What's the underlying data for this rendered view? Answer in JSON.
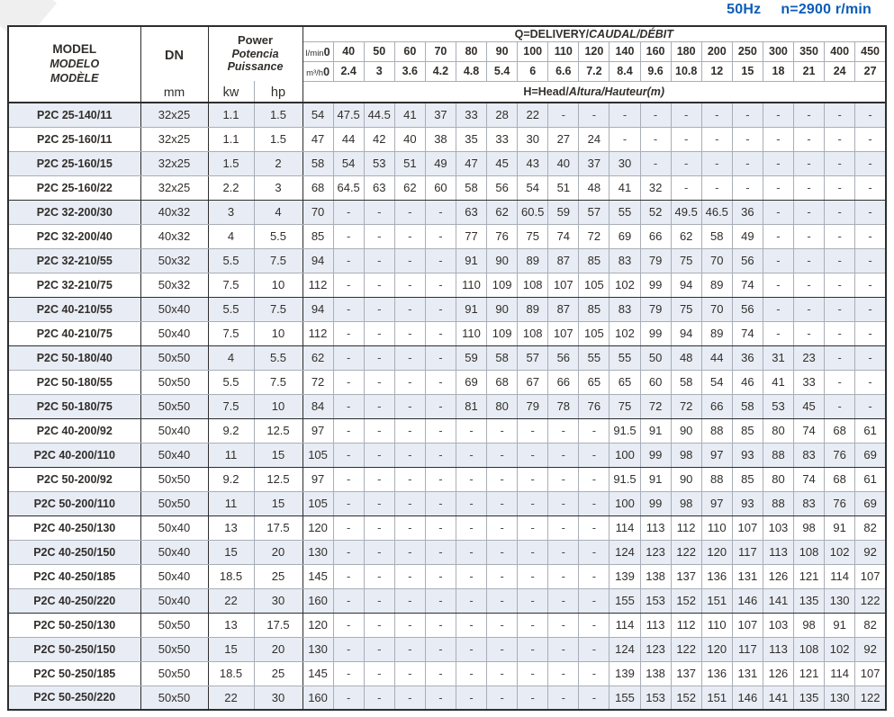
{
  "page": {
    "frequency": "50Hz",
    "speed": "n=2900 r/min"
  },
  "colors": {
    "accent_blue": "#0b5cb8",
    "row_shade": "#e8ecf4",
    "border_dark": "#2d2d2d",
    "border_light": "#a9aeb6"
  },
  "table": {
    "model_header": [
      "MODEL",
      "MODELO",
      "MODÈLE"
    ],
    "dn_label": "DN",
    "dn_unit": "mm",
    "power_header": [
      "Power",
      "Potencia",
      "Puissance"
    ],
    "power_units": [
      "kw",
      "hp"
    ],
    "q_title": {
      "bold": "Q=DELIVERY/",
      "italic": "CAUDAL/DÉBIT"
    },
    "h_title": {
      "bold": "H=Head/",
      "italic": "Altura/Hauteur(m)"
    },
    "flow_row_labels": {
      "lmin": "l/min",
      "m3h": "m³/h"
    },
    "lmin_values": [
      "0",
      "40",
      "50",
      "60",
      "70",
      "80",
      "90",
      "100",
      "110",
      "120",
      "140",
      "160",
      "180",
      "200",
      "250",
      "300",
      "350",
      "400",
      "450"
    ],
    "m3h_values": [
      "0",
      "2.4",
      "3",
      "3.6",
      "4.2",
      "4.8",
      "5.4",
      "6",
      "6.6",
      "7.2",
      "8.4",
      "9.6",
      "10.8",
      "12",
      "15",
      "18",
      "21",
      "24",
      "27"
    ],
    "rows": [
      {
        "model": "P2C 25-140/11",
        "dn": "32x25",
        "kw": "1.1",
        "hp": "1.5",
        "group_end": false,
        "heads": [
          "54",
          "47.5",
          "44.5",
          "41",
          "37",
          "33",
          "28",
          "22",
          "-",
          "-",
          "-",
          "-",
          "-",
          "-",
          "-",
          "-",
          "-",
          "-",
          "-"
        ]
      },
      {
        "model": "P2C 25-160/11",
        "dn": "32x25",
        "kw": "1.1",
        "hp": "1.5",
        "group_end": false,
        "heads": [
          "47",
          "44",
          "42",
          "40",
          "38",
          "35",
          "33",
          "30",
          "27",
          "24",
          "-",
          "-",
          "-",
          "-",
          "-",
          "-",
          "-",
          "-",
          "-"
        ]
      },
      {
        "model": "P2C 25-160/15",
        "dn": "32x25",
        "kw": "1.5",
        "hp": "2",
        "group_end": false,
        "heads": [
          "58",
          "54",
          "53",
          "51",
          "49",
          "47",
          "45",
          "43",
          "40",
          "37",
          "30",
          "-",
          "-",
          "-",
          "-",
          "-",
          "-",
          "-",
          "-"
        ]
      },
      {
        "model": "P2C 25-160/22",
        "dn": "32x25",
        "kw": "2.2",
        "hp": "3",
        "group_end": true,
        "heads": [
          "68",
          "64.5",
          "63",
          "62",
          "60",
          "58",
          "56",
          "54",
          "51",
          "48",
          "41",
          "32",
          "-",
          "-",
          "-",
          "-",
          "-",
          "-",
          "-"
        ]
      },
      {
        "model": "P2C 32-200/30",
        "dn": "40x32",
        "kw": "3",
        "hp": "4",
        "group_end": false,
        "heads": [
          "70",
          "-",
          "-",
          "-",
          "-",
          "63",
          "62",
          "60.5",
          "59",
          "57",
          "55",
          "52",
          "49.5",
          "46.5",
          "36",
          "-",
          "-",
          "-",
          "-"
        ]
      },
      {
        "model": "P2C 32-200/40",
        "dn": "40x32",
        "kw": "4",
        "hp": "5.5",
        "group_end": false,
        "heads": [
          "85",
          "-",
          "-",
          "-",
          "-",
          "77",
          "76",
          "75",
          "74",
          "72",
          "69",
          "66",
          "62",
          "58",
          "49",
          "-",
          "-",
          "-",
          "-"
        ]
      },
      {
        "model": "P2C 32-210/55",
        "dn": "50x32",
        "kw": "5.5",
        "hp": "7.5",
        "group_end": false,
        "heads": [
          "94",
          "-",
          "-",
          "-",
          "-",
          "91",
          "90",
          "89",
          "87",
          "85",
          "83",
          "79",
          "75",
          "70",
          "56",
          "-",
          "-",
          "-",
          "-"
        ]
      },
      {
        "model": "P2C 32-210/75",
        "dn": "50x32",
        "kw": "7.5",
        "hp": "10",
        "group_end": true,
        "heads": [
          "112",
          "-",
          "-",
          "-",
          "-",
          "110",
          "109",
          "108",
          "107",
          "105",
          "102",
          "99",
          "94",
          "89",
          "74",
          "-",
          "-",
          "-",
          "-"
        ]
      },
      {
        "model": "P2C 40-210/55",
        "dn": "50x40",
        "kw": "5.5",
        "hp": "7.5",
        "group_end": false,
        "heads": [
          "94",
          "-",
          "-",
          "-",
          "-",
          "91",
          "90",
          "89",
          "87",
          "85",
          "83",
          "79",
          "75",
          "70",
          "56",
          "-",
          "-",
          "-",
          "-"
        ]
      },
      {
        "model": "P2C 40-210/75",
        "dn": "50x40",
        "kw": "7.5",
        "hp": "10",
        "group_end": true,
        "heads": [
          "112",
          "-",
          "-",
          "-",
          "-",
          "110",
          "109",
          "108",
          "107",
          "105",
          "102",
          "99",
          "94",
          "89",
          "74",
          "-",
          "-",
          "-",
          "-"
        ]
      },
      {
        "model": "P2C 50-180/40",
        "dn": "50x50",
        "kw": "4",
        "hp": "5.5",
        "group_end": false,
        "heads": [
          "62",
          "-",
          "-",
          "-",
          "-",
          "59",
          "58",
          "57",
          "56",
          "55",
          "55",
          "50",
          "48",
          "44",
          "36",
          "31",
          "23",
          "-",
          "-"
        ]
      },
      {
        "model": "P2C 50-180/55",
        "dn": "50x50",
        "kw": "5.5",
        "hp": "7.5",
        "group_end": false,
        "heads": [
          "72",
          "-",
          "-",
          "-",
          "-",
          "69",
          "68",
          "67",
          "66",
          "65",
          "65",
          "60",
          "58",
          "54",
          "46",
          "41",
          "33",
          "-",
          "-"
        ]
      },
      {
        "model": "P2C 50-180/75",
        "dn": "50x50",
        "kw": "7.5",
        "hp": "10",
        "group_end": true,
        "heads": [
          "84",
          "-",
          "-",
          "-",
          "-",
          "81",
          "80",
          "79",
          "78",
          "76",
          "75",
          "72",
          "72",
          "66",
          "58",
          "53",
          "45",
          "-",
          "-"
        ]
      },
      {
        "model": "P2C 40-200/92",
        "dn": "50x40",
        "kw": "9.2",
        "hp": "12.5",
        "group_end": false,
        "heads": [
          "97",
          "-",
          "-",
          "-",
          "-",
          "-",
          "-",
          "-",
          "-",
          "-",
          "91.5",
          "91",
          "90",
          "88",
          "85",
          "80",
          "74",
          "68",
          "61"
        ]
      },
      {
        "model": "P2C 40-200/110",
        "dn": "50x40",
        "kw": "11",
        "hp": "15",
        "group_end": true,
        "heads": [
          "105",
          "-",
          "-",
          "-",
          "-",
          "-",
          "-",
          "-",
          "-",
          "-",
          "100",
          "99",
          "98",
          "97",
          "93",
          "88",
          "83",
          "76",
          "69"
        ]
      },
      {
        "model": "P2C 50-200/92",
        "dn": "50x50",
        "kw": "9.2",
        "hp": "12.5",
        "group_end": false,
        "heads": [
          "97",
          "-",
          "-",
          "-",
          "-",
          "-",
          "-",
          "-",
          "-",
          "-",
          "91.5",
          "91",
          "90",
          "88",
          "85",
          "80",
          "74",
          "68",
          "61"
        ]
      },
      {
        "model": "P2C 50-200/110",
        "dn": "50x50",
        "kw": "11",
        "hp": "15",
        "group_end": true,
        "heads": [
          "105",
          "-",
          "-",
          "-",
          "-",
          "-",
          "-",
          "-",
          "-",
          "-",
          "100",
          "99",
          "98",
          "97",
          "93",
          "88",
          "83",
          "76",
          "69"
        ]
      },
      {
        "model": "P2C 40-250/130",
        "dn": "50x40",
        "kw": "13",
        "hp": "17.5",
        "group_end": false,
        "heads": [
          "120",
          "-",
          "-",
          "-",
          "-",
          "-",
          "-",
          "-",
          "-",
          "-",
          "114",
          "113",
          "112",
          "110",
          "107",
          "103",
          "98",
          "91",
          "82"
        ]
      },
      {
        "model": "P2C 40-250/150",
        "dn": "50x40",
        "kw": "15",
        "hp": "20",
        "group_end": false,
        "heads": [
          "130",
          "-",
          "-",
          "-",
          "-",
          "-",
          "-",
          "-",
          "-",
          "-",
          "124",
          "123",
          "122",
          "120",
          "117",
          "113",
          "108",
          "102",
          "92"
        ]
      },
      {
        "model": "P2C 40-250/185",
        "dn": "50x40",
        "kw": "18.5",
        "hp": "25",
        "group_end": false,
        "heads": [
          "145",
          "-",
          "-",
          "-",
          "-",
          "-",
          "-",
          "-",
          "-",
          "-",
          "139",
          "138",
          "137",
          "136",
          "131",
          "126",
          "121",
          "114",
          "107"
        ]
      },
      {
        "model": "P2C 40-250/220",
        "dn": "50x40",
        "kw": "22",
        "hp": "30",
        "group_end": true,
        "heads": [
          "160",
          "-",
          "-",
          "-",
          "-",
          "-",
          "-",
          "-",
          "-",
          "-",
          "155",
          "153",
          "152",
          "151",
          "146",
          "141",
          "135",
          "130",
          "122"
        ]
      },
      {
        "model": "P2C 50-250/130",
        "dn": "50x50",
        "kw": "13",
        "hp": "17.5",
        "group_end": false,
        "heads": [
          "120",
          "-",
          "-",
          "-",
          "-",
          "-",
          "-",
          "-",
          "-",
          "-",
          "114",
          "113",
          "112",
          "110",
          "107",
          "103",
          "98",
          "91",
          "82"
        ]
      },
      {
        "model": "P2C 50-250/150",
        "dn": "50x50",
        "kw": "15",
        "hp": "20",
        "group_end": false,
        "heads": [
          "130",
          "-",
          "-",
          "-",
          "-",
          "-",
          "-",
          "-",
          "-",
          "-",
          "124",
          "123",
          "122",
          "120",
          "117",
          "113",
          "108",
          "102",
          "92"
        ]
      },
      {
        "model": "P2C 50-250/185",
        "dn": "50x50",
        "kw": "18.5",
        "hp": "25",
        "group_end": false,
        "heads": [
          "145",
          "-",
          "-",
          "-",
          "-",
          "-",
          "-",
          "-",
          "-",
          "-",
          "139",
          "138",
          "137",
          "136",
          "131",
          "126",
          "121",
          "114",
          "107"
        ]
      },
      {
        "model": "P2C 50-250/220",
        "dn": "50x50",
        "kw": "22",
        "hp": "30",
        "group_end": false,
        "heads": [
          "160",
          "-",
          "-",
          "-",
          "-",
          "-",
          "-",
          "-",
          "-",
          "-",
          "155",
          "153",
          "152",
          "151",
          "146",
          "141",
          "135",
          "130",
          "122"
        ]
      }
    ]
  }
}
